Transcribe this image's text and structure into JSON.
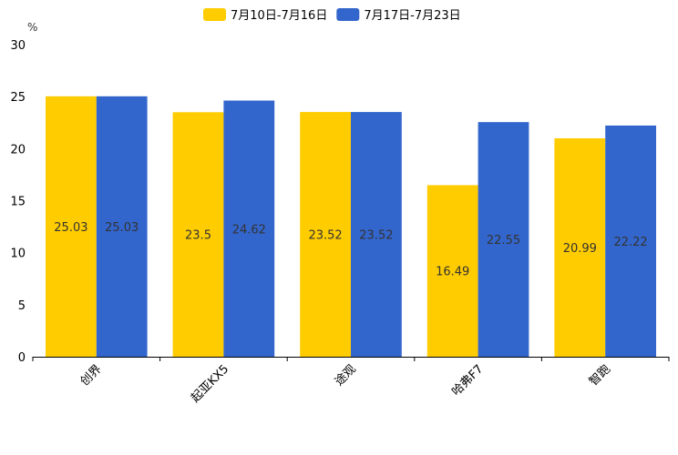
{
  "chart_data": {
    "type": "bar",
    "title": "",
    "xlabel": "",
    "ylabel": "%",
    "ylim": [
      0,
      30
    ],
    "yticks": [
      0,
      5,
      10,
      15,
      20,
      25,
      30
    ],
    "categories": [
      "创界",
      "起亚KX5",
      "途观",
      "哈弗F7",
      "智跑"
    ],
    "series": [
      {
        "name": "7月10日-7月16日",
        "color": "#FFCC00",
        "values": [
          25.03,
          23.5,
          23.52,
          16.49,
          20.99
        ]
      },
      {
        "name": "7月17日-7月23日",
        "color": "#3366CC",
        "values": [
          25.03,
          24.62,
          23.52,
          22.55,
          22.22
        ]
      }
    ],
    "legend_position": "top-center",
    "grid": false
  }
}
